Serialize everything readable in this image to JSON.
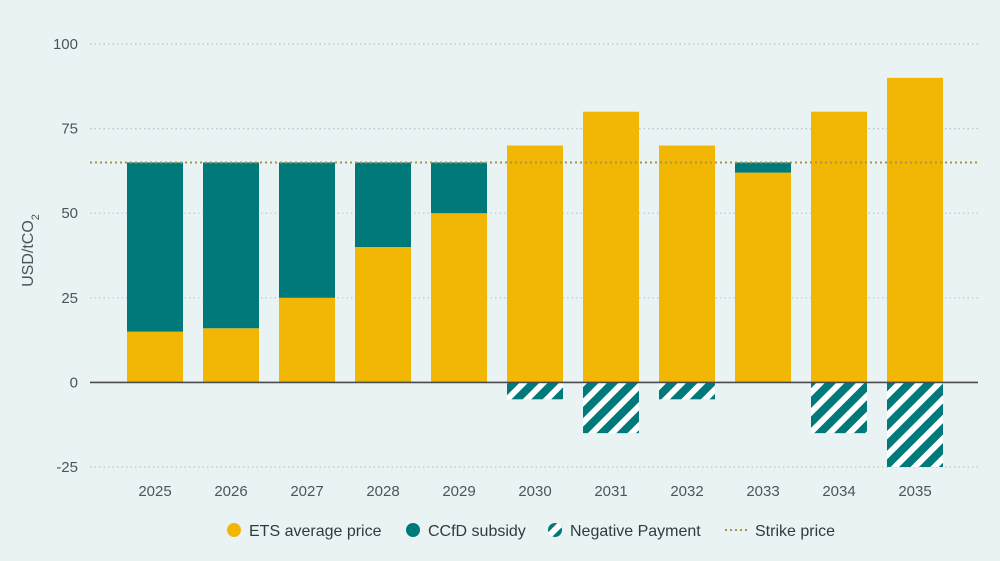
{
  "colors": {
    "ets": "#f2b705",
    "ccfd": "#00797a",
    "negative": "#00797a",
    "strike": "#a8934a",
    "grid": "#b9c6c8",
    "zero_line": "#4b4b4b"
  },
  "chart_data": {
    "type": "bar",
    "stacked": true,
    "ylabel": "USD/tCO",
    "ylabel_subscript": "2",
    "xlabel": "",
    "ylim": [
      -25,
      100
    ],
    "yticks": [
      -25,
      0,
      25,
      50,
      75,
      100
    ],
    "grid": true,
    "legend_position": "bottom",
    "categories": [
      "2025",
      "2026",
      "2027",
      "2028",
      "2029",
      "2030",
      "2031",
      "2032",
      "2033",
      "2034",
      "2035"
    ],
    "series": [
      {
        "name": "ETS average price",
        "key": "ets",
        "style": "solid",
        "values": [
          15,
          16,
          25,
          40,
          50,
          70,
          80,
          70,
          62,
          80,
          90
        ]
      },
      {
        "name": "CCfD subsidy",
        "key": "ccfd",
        "style": "solid",
        "values": [
          50,
          49,
          40,
          25,
          15,
          0,
          0,
          0,
          3,
          0,
          0
        ]
      },
      {
        "name": "Negative Payment",
        "key": "negative",
        "style": "hatched",
        "values": [
          0,
          0,
          0,
          0,
          0,
          -5,
          -15,
          -5,
          0,
          -15,
          -25
        ]
      }
    ],
    "reference_lines": [
      {
        "name": "Strike price",
        "value": 65,
        "style": "dotted"
      }
    ]
  }
}
